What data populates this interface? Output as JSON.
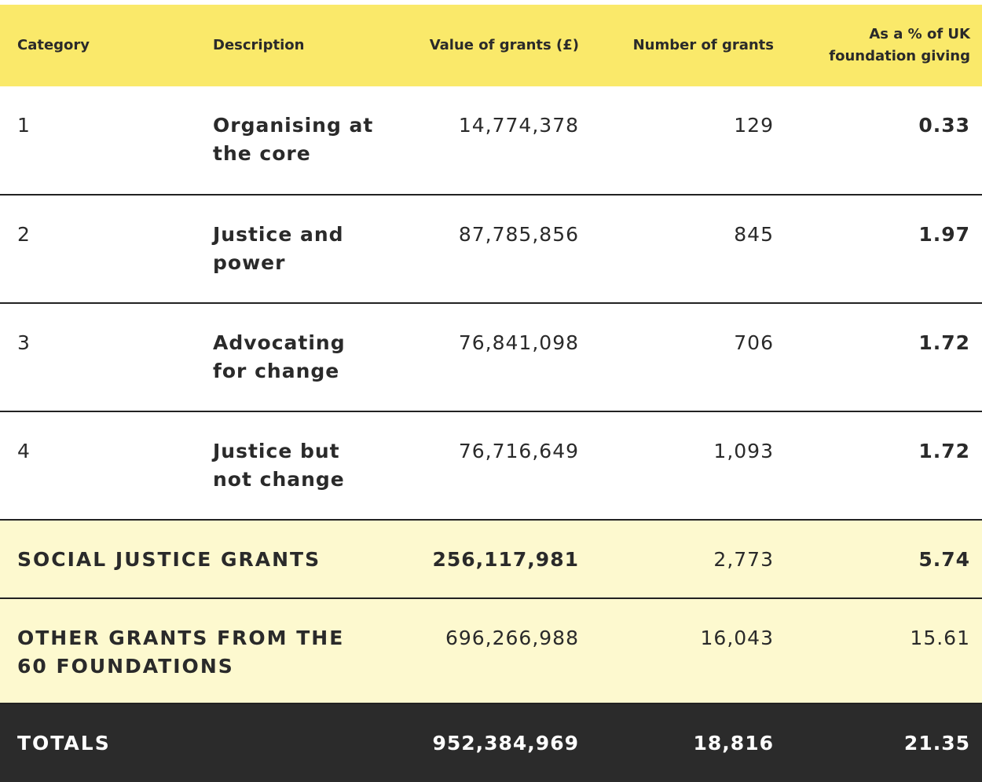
{
  "table": {
    "header": [
      "Category",
      "Description",
      "Value of grants (£)",
      "Number of grants",
      "As a % of UK foundation giving"
    ],
    "rows": [
      [
        "1",
        "Organising at the core",
        "14,774,378",
        "129",
        "0.33"
      ],
      [
        "2",
        "Justice and power",
        "87,785,856",
        "845",
        "1.97"
      ],
      [
        "3",
        "Advocating for change",
        "76,841,098",
        "706",
        "1.72"
      ],
      [
        "4",
        "Justice but not change",
        "76,716,649",
        "1,093",
        "1.72"
      ]
    ],
    "summary_rows": [
      [
        "SOCIAL JUSTICE GRANTS",
        "256,117,981",
        "2,773",
        "5.74"
      ],
      [
        "OTHER GRANTS FROM THE 60 FOUNDATIONS",
        "696,266,988",
        "16,043",
        "15.61"
      ]
    ],
    "totals": [
      "TOTALS",
      "952,384,969",
      "18,816",
      "21.35"
    ]
  }
}
